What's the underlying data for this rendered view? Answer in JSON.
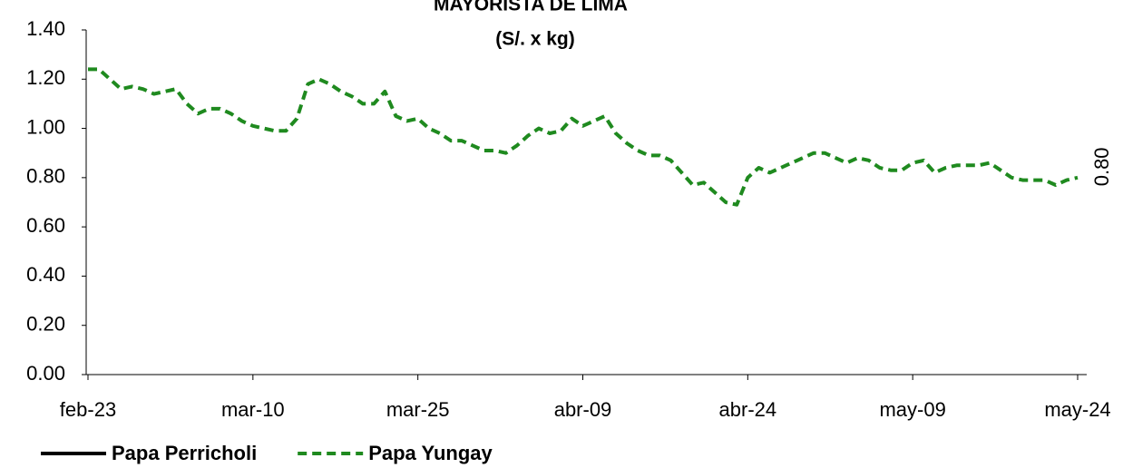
{
  "chart_data": {
    "type": "line",
    "title": "MAYORISTA DE LIMA",
    "subtitle": "(S/. x kg)",
    "categories": [
      "feb-23",
      null,
      null,
      null,
      null,
      null,
      null,
      null,
      null,
      null,
      null,
      null,
      null,
      null,
      null,
      "mar-10",
      null,
      null,
      null,
      null,
      null,
      null,
      null,
      null,
      null,
      null,
      null,
      null,
      null,
      null,
      "mar-25",
      null,
      null,
      null,
      null,
      null,
      null,
      null,
      null,
      null,
      null,
      null,
      null,
      null,
      null,
      "abr-09",
      null,
      null,
      null,
      null,
      null,
      null,
      null,
      null,
      null,
      null,
      null,
      null,
      null,
      null,
      "abr-24",
      null,
      null,
      null,
      null,
      null,
      null,
      null,
      null,
      null,
      null,
      null,
      null,
      null,
      null,
      "may-09",
      null,
      null,
      null,
      null,
      null,
      null,
      null,
      null,
      null,
      null,
      null,
      null,
      null,
      null,
      "may-24"
    ],
    "series": [
      {
        "name": "Papa Perricholi",
        "color": "#000000",
        "dashed": false,
        "values": [
          null,
          null,
          null,
          null,
          null,
          null,
          null,
          null,
          null,
          null,
          null,
          null,
          null,
          null,
          null,
          null,
          null,
          null,
          null,
          null,
          null,
          null,
          null,
          null,
          null,
          null,
          null,
          null,
          null,
          null,
          null,
          null,
          null,
          null,
          null,
          null,
          null,
          null,
          null,
          null,
          null,
          null,
          null,
          null,
          null,
          null,
          null,
          null,
          null,
          null,
          null,
          null,
          null,
          null,
          null,
          null,
          null,
          null,
          null,
          null,
          null,
          null,
          null,
          null,
          null,
          null,
          null,
          null,
          null,
          null,
          null,
          null,
          null,
          null,
          null,
          null,
          null,
          null,
          null,
          null,
          null,
          null,
          null,
          null,
          null,
          null,
          null,
          null,
          null,
          null,
          null
        ]
      },
      {
        "name": "Papa Yungay",
        "color": "#1f8a1f",
        "dashed": true,
        "values": [
          1.24,
          1.24,
          1.2,
          1.16,
          1.17,
          1.16,
          1.14,
          1.15,
          1.16,
          1.1,
          1.06,
          1.08,
          1.08,
          1.06,
          1.03,
          1.01,
          1.0,
          0.99,
          0.99,
          1.04,
          1.18,
          1.2,
          1.18,
          1.15,
          1.13,
          1.1,
          1.1,
          1.15,
          1.05,
          1.03,
          1.04,
          1.0,
          0.98,
          0.95,
          0.95,
          0.93,
          0.91,
          0.91,
          0.9,
          0.93,
          0.97,
          1.0,
          0.98,
          0.99,
          1.04,
          1.01,
          1.03,
          1.05,
          0.98,
          0.94,
          0.91,
          0.89,
          0.89,
          0.87,
          0.82,
          0.77,
          0.78,
          0.74,
          0.7,
          0.69,
          0.8,
          0.84,
          0.82,
          0.84,
          0.86,
          0.88,
          0.9,
          0.9,
          0.88,
          0.86,
          0.88,
          0.87,
          0.84,
          0.83,
          0.83,
          0.86,
          0.87,
          0.82,
          0.84,
          0.85,
          0.85,
          0.85,
          0.86,
          0.83,
          0.8,
          0.79,
          0.79,
          0.79,
          0.77,
          0.79,
          0.8
        ],
        "value_labels": [
          null,
          null,
          null,
          null,
          null,
          null,
          null,
          null,
          null,
          null,
          null,
          null,
          null,
          null,
          null,
          null,
          null,
          null,
          null,
          null,
          null,
          null,
          null,
          null,
          null,
          null,
          null,
          null,
          null,
          null,
          null,
          null,
          null,
          null,
          null,
          null,
          null,
          null,
          null,
          null,
          null,
          null,
          null,
          null,
          null,
          null,
          null,
          null,
          null,
          null,
          null,
          null,
          null,
          null,
          null,
          null,
          null,
          null,
          null,
          null,
          null,
          null,
          null,
          null,
          null,
          null,
          null,
          null,
          null,
          null,
          null,
          null,
          null,
          null,
          null,
          null,
          null,
          null,
          null,
          null,
          null,
          null,
          null,
          null,
          null,
          null,
          null,
          null,
          null,
          null,
          "0.80"
        ]
      }
    ],
    "ylim": [
      0,
      1.4
    ],
    "yticks": [
      {
        "value": 0,
        "label": "0.00"
      },
      {
        "value": 0.2,
        "label": "0.20"
      },
      {
        "value": 0.4,
        "label": "0.40"
      },
      {
        "value": 0.6,
        "label": "0.60"
      },
      {
        "value": 0.8,
        "label": "0.80"
      },
      {
        "value": 1.0,
        "label": "1.00"
      },
      {
        "value": 1.2,
        "label": "1.20"
      },
      {
        "value": 1.4,
        "label": "1.40"
      }
    ],
    "grid": false
  }
}
